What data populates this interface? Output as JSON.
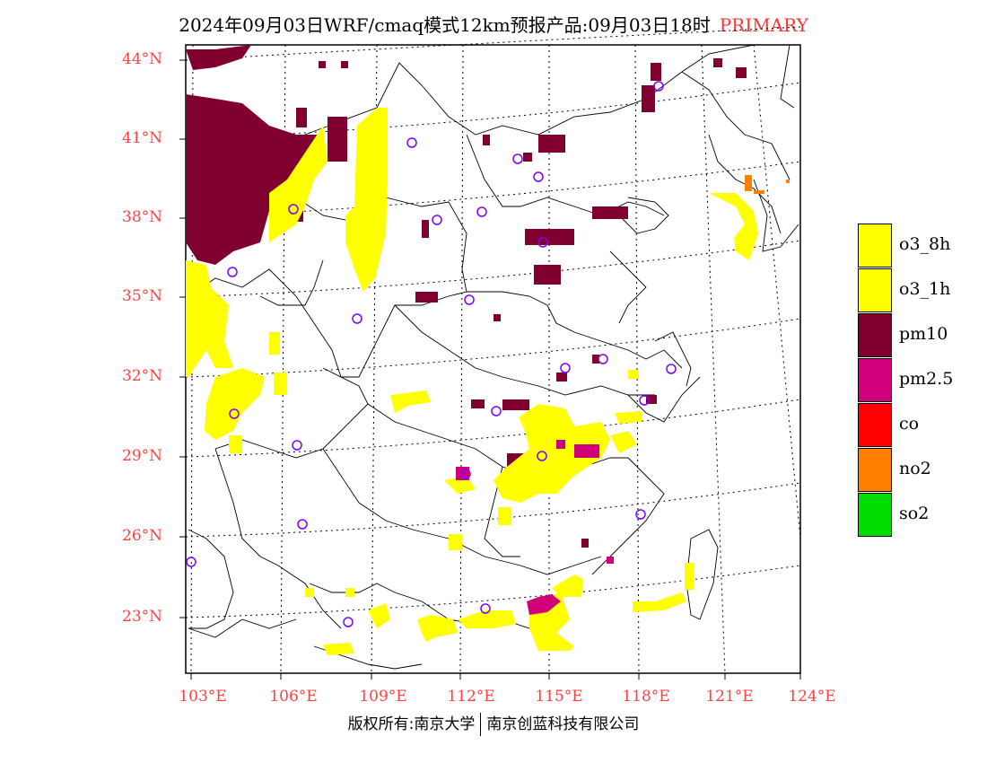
{
  "header": {
    "title": "2024年09月03日WRF/cmaq模式12km预报产品:09月03日18时",
    "tag": "PRIMARY"
  },
  "map": {
    "lat_labels": [
      "44°N",
      "41°N",
      "38°N",
      "35°N",
      "32°N",
      "29°N",
      "26°N",
      "23°N"
    ],
    "lon_labels": [
      "103°E",
      "106°E",
      "109°E",
      "112°E",
      "115°E",
      "118°E",
      "121°E",
      "124°E"
    ]
  },
  "legend": {
    "items": [
      {
        "label": "o3_8h",
        "color": "#ffff00"
      },
      {
        "label": "o3_1h",
        "color": "#ffff00"
      },
      {
        "label": "pm10",
        "color": "#800030"
      },
      {
        "label": "pm2.5",
        "color": "#d0007a"
      },
      {
        "label": "co",
        "color": "#ff0000"
      },
      {
        "label": "no2",
        "color": "#ff8000"
      },
      {
        "label": "so2",
        "color": "#00dd00"
      }
    ]
  },
  "footer": {
    "left": "版权所有:南京大学",
    "right": "南京创蓝科技有限公司"
  }
}
